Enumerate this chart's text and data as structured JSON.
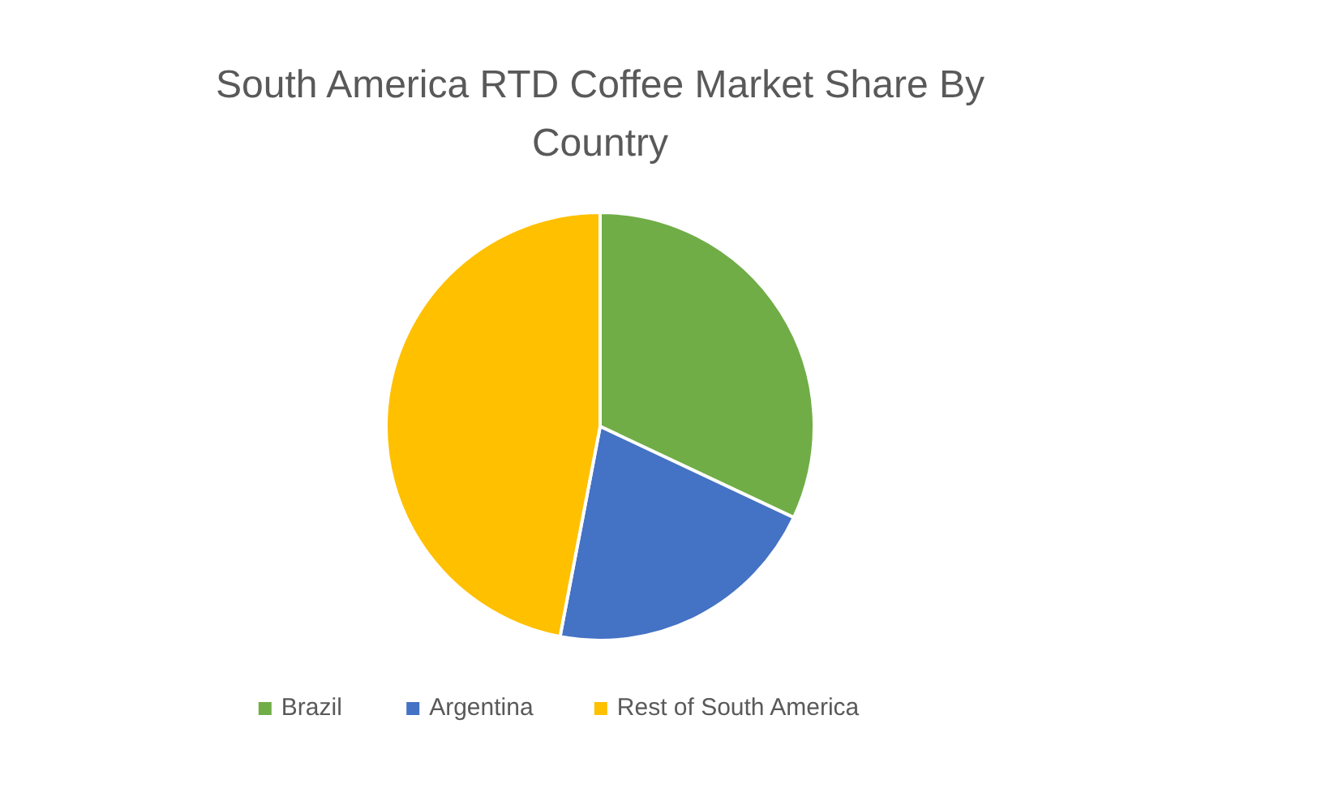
{
  "chart_data": {
    "type": "pie",
    "title": "South America RTD Coffee Market Share By Country",
    "categories": [
      "Brazil",
      "Argentina",
      "Rest of South America"
    ],
    "values": [
      32,
      21,
      47
    ],
    "colors": [
      "#70ad47",
      "#4472c4",
      "#ffc000"
    ],
    "legend": "bottom"
  }
}
